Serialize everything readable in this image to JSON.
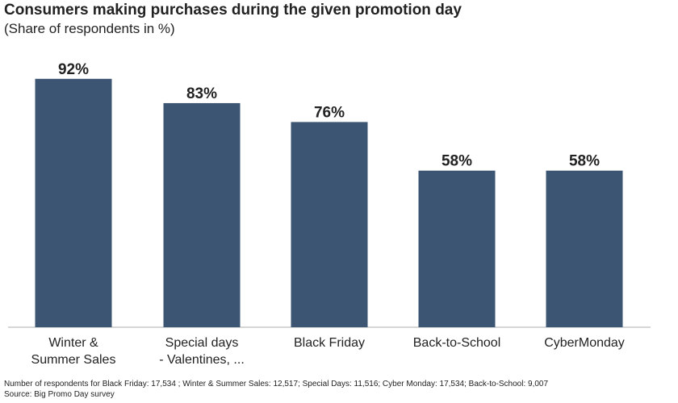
{
  "header": {
    "title": "Consumers making purchases during the given promotion day",
    "subtitle": "(Share of respondents in %)"
  },
  "footer": {
    "note": "Number of respondents for Black Friday:  17,534 ; Winter & Summer Sales: 12,517; Special Days: 11,516; Cyber Monday: 17,534; Back-to-School: 9,007",
    "source": "Source: Big Promo Day survey"
  },
  "chart_data": {
    "type": "bar",
    "title": "Consumers making purchases during the given promotion day",
    "subtitle": "(Share of respondents in %)",
    "categories": [
      [
        "Winter &",
        "Summer Sales"
      ],
      [
        "Special days",
        "- Valentines, ..."
      ],
      [
        "Black Friday"
      ],
      [
        "Back-to-School"
      ],
      [
        "CyberMonday"
      ]
    ],
    "values": [
      92,
      83,
      76,
      58,
      58
    ],
    "value_labels": [
      "92%",
      "83%",
      "76%",
      "58%",
      "58%"
    ],
    "ylim": [
      0,
      100
    ],
    "grid": false,
    "legend": "none",
    "bar_color": "#3b5573",
    "axis_color": "#c8c8c8"
  }
}
